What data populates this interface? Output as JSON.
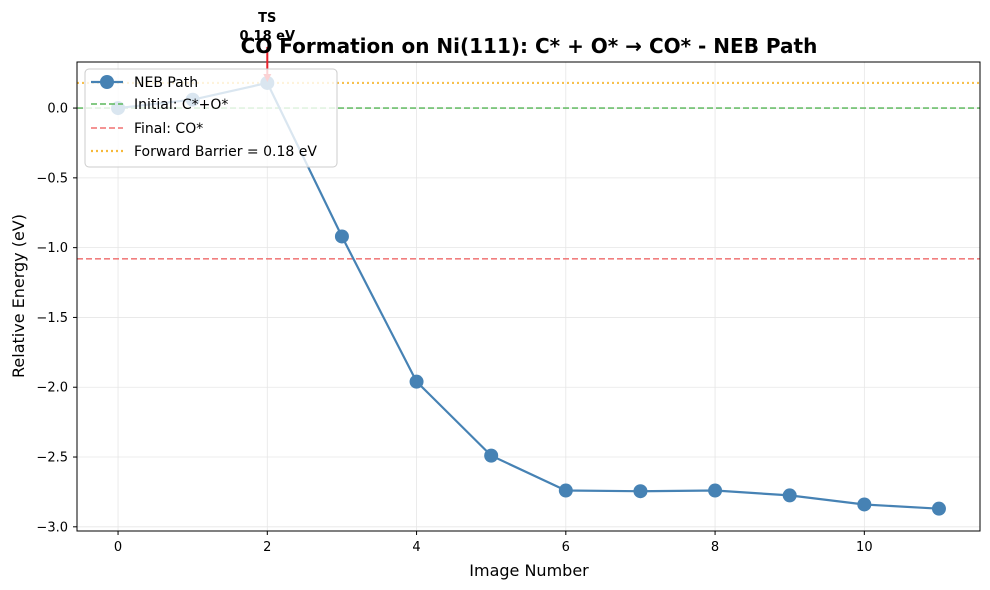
{
  "chart_data": {
    "type": "line",
    "title": "CO Formation on Ni(111): C* + O* → CO* - NEB Path",
    "xlabel": "Image Number",
    "ylabel": "Relative Energy (eV)",
    "xlim": [
      -0.55,
      11.55
    ],
    "ylim": [
      -3.03,
      0.33
    ],
    "xticks": [
      0,
      2,
      4,
      6,
      8,
      10
    ],
    "yticks": [
      0.0,
      -0.5,
      -1.0,
      -1.5,
      -2.0,
      -2.5,
      -3.0
    ],
    "xtick_labels": [
      "0",
      "2",
      "4",
      "6",
      "8",
      "10"
    ],
    "ytick_labels": [
      "0.0",
      "−0.5",
      "−1.0",
      "−1.5",
      "−2.0",
      "−2.5",
      "−3.0"
    ],
    "grid": true,
    "legend_position": "top-left",
    "series": [
      {
        "name": "NEB Path",
        "x": [
          0,
          1,
          2,
          3,
          4,
          5,
          6,
          7,
          8,
          9,
          10,
          11
        ],
        "y": [
          0.0,
          0.06,
          0.18,
          -0.92,
          -1.96,
          -2.49,
          -2.74,
          -2.745,
          -2.74,
          -2.775,
          -2.84,
          -2.87
        ],
        "color": "#4682b4"
      }
    ],
    "reference_lines": [
      {
        "name": "Initial: C*+O*",
        "y": 0.0,
        "color": "#5cb85c",
        "style": "dashed"
      },
      {
        "name": "Final: CO*",
        "y": -1.08,
        "color": "#f07070",
        "style": "dashed"
      },
      {
        "name": "Forward Barrier = 0.18 eV",
        "y": 0.18,
        "color": "#f6b93b",
        "style": "dotted"
      }
    ],
    "annotation": {
      "line1": "TS",
      "line2": "0.18 eV",
      "x": 2,
      "y": 0.18,
      "arrow_color": "#e8202a"
    },
    "legend": [
      "NEB Path",
      "Initial: C*+O*",
      "Final: CO*",
      "Forward Barrier = 0.18 eV"
    ]
  }
}
